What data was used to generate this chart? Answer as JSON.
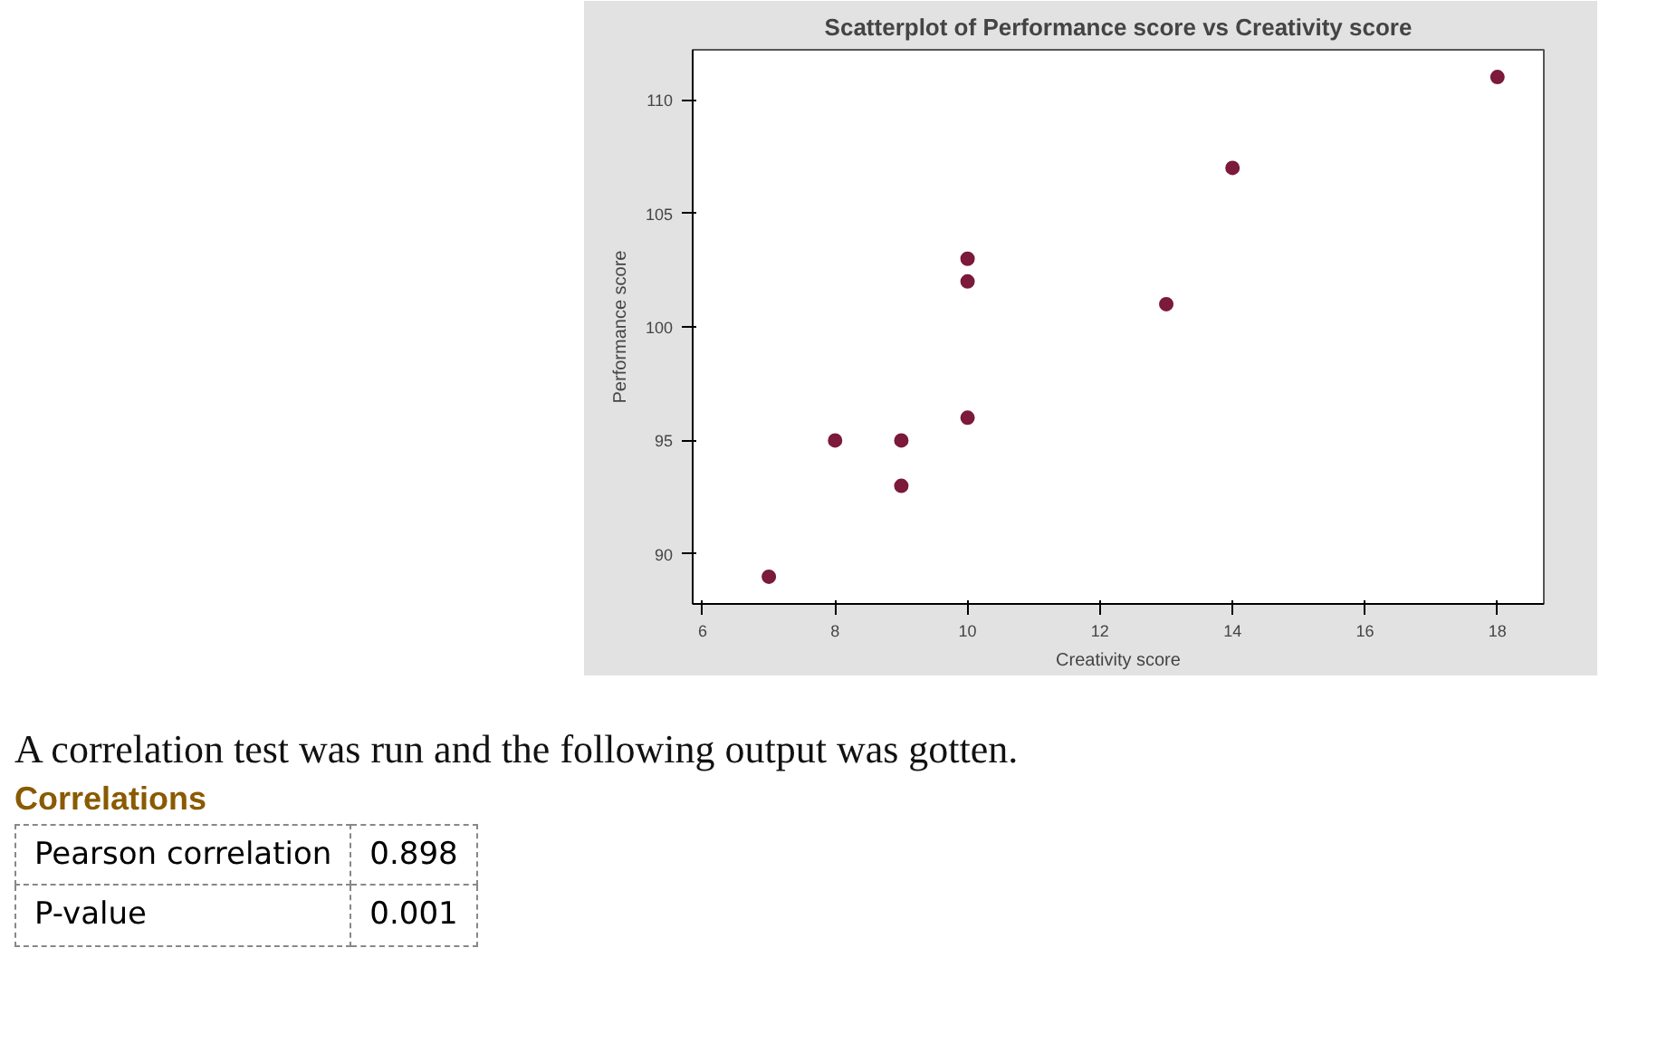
{
  "chart_data": {
    "type": "scatter",
    "title": "Scatterplot of Performance score vs Creativity score",
    "xlabel": "Creativity score",
    "ylabel": "Performance score",
    "x": [
      7,
      8,
      9,
      9,
      10,
      10,
      10,
      13,
      14,
      18
    ],
    "series": [
      {
        "color": "#7b1a3a",
        "values": [
          89,
          95,
          95,
          93,
          103,
          102,
          96,
          101,
          107,
          111
        ]
      }
    ],
    "xlim": [
      5.85,
      18.7
    ],
    "ylim": [
      87.8,
      112.2
    ],
    "xticks": [
      6,
      8,
      10,
      12,
      14,
      16,
      18
    ],
    "yticks": [
      90,
      95,
      100,
      105,
      110
    ],
    "grid": false,
    "marker": "circle",
    "annotations": [
      "A correlation test was run and the following output was gotten.",
      "Correlations",
      "Pearson correlation",
      "0.898",
      "P-value",
      "0.001"
    ]
  }
}
